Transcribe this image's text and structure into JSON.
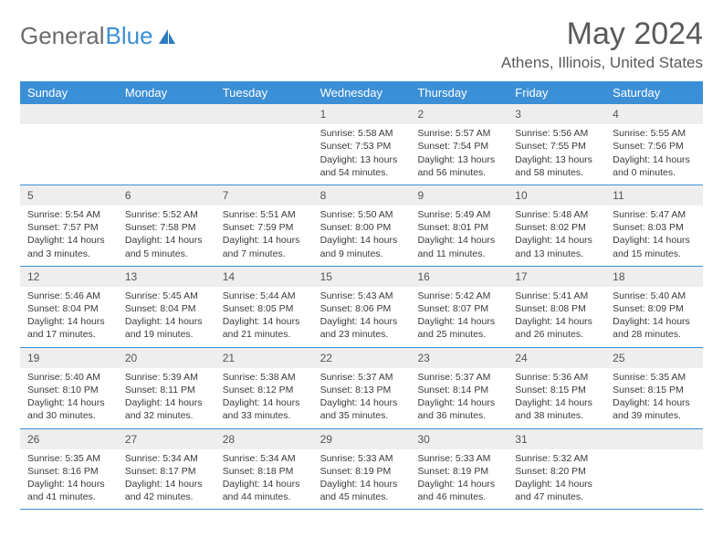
{
  "logo": {
    "word1": "General",
    "word2": "Blue"
  },
  "title": "May 2024",
  "location": "Athens, Illinois, United States",
  "colors": {
    "accent": "#3b8fd6",
    "header_bg": "#3b8fd6",
    "header_text": "#ffffff",
    "daynum_bg": "#eeeeee",
    "text": "#3a3a3a",
    "title_color": "#5a5a5a"
  },
  "days_of_week": [
    "Sunday",
    "Monday",
    "Tuesday",
    "Wednesday",
    "Thursday",
    "Friday",
    "Saturday"
  ],
  "weeks": [
    [
      {
        "n": "",
        "sr": "",
        "ss": "",
        "dl": ""
      },
      {
        "n": "",
        "sr": "",
        "ss": "",
        "dl": ""
      },
      {
        "n": "",
        "sr": "",
        "ss": "",
        "dl": ""
      },
      {
        "n": "1",
        "sr": "Sunrise: 5:58 AM",
        "ss": "Sunset: 7:53 PM",
        "dl": "Daylight: 13 hours and 54 minutes."
      },
      {
        "n": "2",
        "sr": "Sunrise: 5:57 AM",
        "ss": "Sunset: 7:54 PM",
        "dl": "Daylight: 13 hours and 56 minutes."
      },
      {
        "n": "3",
        "sr": "Sunrise: 5:56 AM",
        "ss": "Sunset: 7:55 PM",
        "dl": "Daylight: 13 hours and 58 minutes."
      },
      {
        "n": "4",
        "sr": "Sunrise: 5:55 AM",
        "ss": "Sunset: 7:56 PM",
        "dl": "Daylight: 14 hours and 0 minutes."
      }
    ],
    [
      {
        "n": "5",
        "sr": "Sunrise: 5:54 AM",
        "ss": "Sunset: 7:57 PM",
        "dl": "Daylight: 14 hours and 3 minutes."
      },
      {
        "n": "6",
        "sr": "Sunrise: 5:52 AM",
        "ss": "Sunset: 7:58 PM",
        "dl": "Daylight: 14 hours and 5 minutes."
      },
      {
        "n": "7",
        "sr": "Sunrise: 5:51 AM",
        "ss": "Sunset: 7:59 PM",
        "dl": "Daylight: 14 hours and 7 minutes."
      },
      {
        "n": "8",
        "sr": "Sunrise: 5:50 AM",
        "ss": "Sunset: 8:00 PM",
        "dl": "Daylight: 14 hours and 9 minutes."
      },
      {
        "n": "9",
        "sr": "Sunrise: 5:49 AM",
        "ss": "Sunset: 8:01 PM",
        "dl": "Daylight: 14 hours and 11 minutes."
      },
      {
        "n": "10",
        "sr": "Sunrise: 5:48 AM",
        "ss": "Sunset: 8:02 PM",
        "dl": "Daylight: 14 hours and 13 minutes."
      },
      {
        "n": "11",
        "sr": "Sunrise: 5:47 AM",
        "ss": "Sunset: 8:03 PM",
        "dl": "Daylight: 14 hours and 15 minutes."
      }
    ],
    [
      {
        "n": "12",
        "sr": "Sunrise: 5:46 AM",
        "ss": "Sunset: 8:04 PM",
        "dl": "Daylight: 14 hours and 17 minutes."
      },
      {
        "n": "13",
        "sr": "Sunrise: 5:45 AM",
        "ss": "Sunset: 8:04 PM",
        "dl": "Daylight: 14 hours and 19 minutes."
      },
      {
        "n": "14",
        "sr": "Sunrise: 5:44 AM",
        "ss": "Sunset: 8:05 PM",
        "dl": "Daylight: 14 hours and 21 minutes."
      },
      {
        "n": "15",
        "sr": "Sunrise: 5:43 AM",
        "ss": "Sunset: 8:06 PM",
        "dl": "Daylight: 14 hours and 23 minutes."
      },
      {
        "n": "16",
        "sr": "Sunrise: 5:42 AM",
        "ss": "Sunset: 8:07 PM",
        "dl": "Daylight: 14 hours and 25 minutes."
      },
      {
        "n": "17",
        "sr": "Sunrise: 5:41 AM",
        "ss": "Sunset: 8:08 PM",
        "dl": "Daylight: 14 hours and 26 minutes."
      },
      {
        "n": "18",
        "sr": "Sunrise: 5:40 AM",
        "ss": "Sunset: 8:09 PM",
        "dl": "Daylight: 14 hours and 28 minutes."
      }
    ],
    [
      {
        "n": "19",
        "sr": "Sunrise: 5:40 AM",
        "ss": "Sunset: 8:10 PM",
        "dl": "Daylight: 14 hours and 30 minutes."
      },
      {
        "n": "20",
        "sr": "Sunrise: 5:39 AM",
        "ss": "Sunset: 8:11 PM",
        "dl": "Daylight: 14 hours and 32 minutes."
      },
      {
        "n": "21",
        "sr": "Sunrise: 5:38 AM",
        "ss": "Sunset: 8:12 PM",
        "dl": "Daylight: 14 hours and 33 minutes."
      },
      {
        "n": "22",
        "sr": "Sunrise: 5:37 AM",
        "ss": "Sunset: 8:13 PM",
        "dl": "Daylight: 14 hours and 35 minutes."
      },
      {
        "n": "23",
        "sr": "Sunrise: 5:37 AM",
        "ss": "Sunset: 8:14 PM",
        "dl": "Daylight: 14 hours and 36 minutes."
      },
      {
        "n": "24",
        "sr": "Sunrise: 5:36 AM",
        "ss": "Sunset: 8:15 PM",
        "dl": "Daylight: 14 hours and 38 minutes."
      },
      {
        "n": "25",
        "sr": "Sunrise: 5:35 AM",
        "ss": "Sunset: 8:15 PM",
        "dl": "Daylight: 14 hours and 39 minutes."
      }
    ],
    [
      {
        "n": "26",
        "sr": "Sunrise: 5:35 AM",
        "ss": "Sunset: 8:16 PM",
        "dl": "Daylight: 14 hours and 41 minutes."
      },
      {
        "n": "27",
        "sr": "Sunrise: 5:34 AM",
        "ss": "Sunset: 8:17 PM",
        "dl": "Daylight: 14 hours and 42 minutes."
      },
      {
        "n": "28",
        "sr": "Sunrise: 5:34 AM",
        "ss": "Sunset: 8:18 PM",
        "dl": "Daylight: 14 hours and 44 minutes."
      },
      {
        "n": "29",
        "sr": "Sunrise: 5:33 AM",
        "ss": "Sunset: 8:19 PM",
        "dl": "Daylight: 14 hours and 45 minutes."
      },
      {
        "n": "30",
        "sr": "Sunrise: 5:33 AM",
        "ss": "Sunset: 8:19 PM",
        "dl": "Daylight: 14 hours and 46 minutes."
      },
      {
        "n": "31",
        "sr": "Sunrise: 5:32 AM",
        "ss": "Sunset: 8:20 PM",
        "dl": "Daylight: 14 hours and 47 minutes."
      },
      {
        "n": "",
        "sr": "",
        "ss": "",
        "dl": ""
      }
    ]
  ]
}
